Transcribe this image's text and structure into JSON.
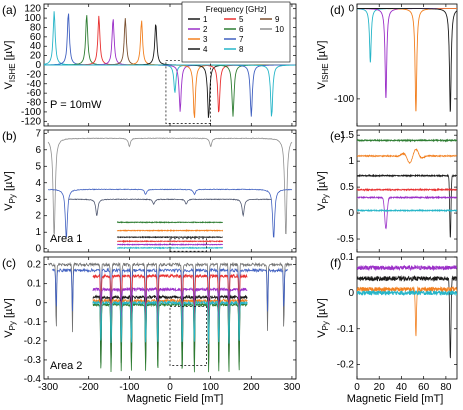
{
  "x_axis_label": "Magnetic Field [mT]",
  "legend": {
    "title": "Frequency [GHz]",
    "entries": [
      {
        "label": "1",
        "color": "#1a1a1a"
      },
      {
        "label": "2",
        "color": "#9b30c8"
      },
      {
        "label": "3",
        "color": "#f28020"
      },
      {
        "label": "4",
        "color": "#1a1a1a"
      },
      {
        "label": "5",
        "color": "#e83030"
      },
      {
        "label": "6",
        "color": "#2e7d32"
      },
      {
        "label": "7",
        "color": "#4060c0"
      },
      {
        "label": "8",
        "color": "#26b5c8"
      },
      {
        "label": "9",
        "color": "#7a5030"
      },
      {
        "label": "10",
        "color": "#909090"
      }
    ]
  },
  "chart_data": [
    {
      "panel": "a",
      "type": "line",
      "ylabel": "V_ISHE [µV]",
      "xlabel": "",
      "xlim": [
        -310,
        310
      ],
      "ylim": [
        -130,
        130
      ],
      "xticks": [
        -300,
        -200,
        -100,
        0,
        100,
        200,
        300
      ],
      "yticks": [
        -120,
        -100,
        -80,
        -60,
        -40,
        -20,
        0,
        20,
        40,
        60,
        80,
        100,
        120
      ],
      "annotation": "P = 10mW",
      "dips": [
        {
          "color": "#26b5c8",
          "center": -285,
          "amp": 115
        },
        {
          "color": "#4060c0",
          "center": -250,
          "amp": 112
        },
        {
          "color": "#2e7d32",
          "center": -205,
          "amp": 108
        },
        {
          "color": "#e83030",
          "center": -175,
          "amp": 105
        },
        {
          "color": "#9b30c8",
          "center": -140,
          "amp": 100
        },
        {
          "color": "#7a5030",
          "center": -110,
          "amp": 100
        },
        {
          "color": "#f28020",
          "center": -70,
          "amp": 95
        },
        {
          "color": "#1a1a1a",
          "center": -35,
          "amp": 90
        },
        {
          "color": "#26b5c8",
          "center": 12,
          "amp": -60
        },
        {
          "color": "#9b30c8",
          "center": 25,
          "amp": -100
        },
        {
          "color": "#f28020",
          "center": 60,
          "amp": -115
        },
        {
          "color": "#1a1a1a",
          "center": 95,
          "amp": -115
        },
        {
          "color": "#e83030",
          "center": 120,
          "amp": -105
        },
        {
          "color": "#2e7d32",
          "center": 155,
          "amp": -110
        },
        {
          "color": "#4060c0",
          "center": 200,
          "amp": -110
        },
        {
          "color": "#26b5c8",
          "center": 250,
          "amp": -112
        }
      ]
    },
    {
      "panel": "b",
      "type": "line",
      "ylabel": "V_Py [µV]",
      "xlabel": "",
      "xlim": [
        -310,
        310
      ],
      "ylim": [
        -0.2,
        7.2
      ],
      "xticks": [
        -300,
        -200,
        -100,
        0,
        100,
        200,
        300
      ],
      "yticks": [
        0,
        1,
        2,
        3,
        4,
        5,
        6,
        7
      ],
      "annotation": "Area 1",
      "series": [
        {
          "color": "#909090",
          "baseline": 6.7,
          "range": [
            -300,
            300
          ],
          "dips": [
            [
              -285,
              6.0
            ],
            [
              -100,
              0.5
            ],
            [
              100,
              0.5
            ],
            [
              285,
              6.0
            ]
          ]
        },
        {
          "color": "#4060c0",
          "baseline": 3.6,
          "range": [
            -300,
            300
          ],
          "dips": [
            [
              -255,
              3.0
            ],
            [
              -60,
              0.3
            ],
            [
              60,
              0.3
            ],
            [
              255,
              3.0
            ]
          ]
        },
        {
          "color": "#505870",
          "baseline": 3.0,
          "range": [
            -250,
            250
          ],
          "dips": [
            [
              -180,
              1.0
            ],
            [
              -40,
              0.3
            ],
            [
              40,
              0.3
            ],
            [
              180,
              1.0
            ]
          ]
        },
        {
          "color": "#2e7d32",
          "baseline": 1.6,
          "range": [
            -130,
            130
          ],
          "dips": []
        },
        {
          "color": "#f28020",
          "baseline": 1.1,
          "range": [
            -130,
            130
          ],
          "dips": []
        },
        {
          "color": "#1a1a1a",
          "baseline": 0.7,
          "range": [
            -130,
            130
          ],
          "dips": []
        },
        {
          "color": "#e83030",
          "baseline": 0.45,
          "range": [
            -130,
            130
          ],
          "dips": []
        },
        {
          "color": "#9b30c8",
          "baseline": 0.25,
          "range": [
            -130,
            130
          ],
          "dips": []
        },
        {
          "color": "#26b5c8",
          "baseline": 0.05,
          "range": [
            -130,
            130
          ],
          "dips": []
        }
      ]
    },
    {
      "panel": "c",
      "type": "line",
      "ylabel": "V_Py [µV]",
      "xlabel": "Magnetic Field [mT]",
      "xlim": [
        -310,
        310
      ],
      "ylim": [
        -0.4,
        0.24
      ],
      "xticks": [
        -300,
        -200,
        -100,
        0,
        100,
        200,
        300
      ],
      "yticks": [
        -0.4,
        -0.3,
        -0.2,
        -0.1,
        0.0,
        0.1,
        0.2
      ],
      "annotation": "Area 2",
      "series": [
        {
          "color": "#707070",
          "baseline": 0.2,
          "range": [
            -300,
            300
          ]
        },
        {
          "color": "#4060c0",
          "baseline": 0.17,
          "range": [
            -290,
            290
          ]
        },
        {
          "color": "#e83030",
          "baseline": 0.14,
          "range": [
            -190,
            190
          ]
        },
        {
          "color": "#9b30c8",
          "baseline": 0.07,
          "range": [
            -190,
            190
          ]
        },
        {
          "color": "#1a1a1a",
          "baseline": 0.03,
          "range": [
            -190,
            190
          ]
        },
        {
          "color": "#f28020",
          "baseline": 0.01,
          "range": [
            -190,
            190
          ]
        },
        {
          "color": "#2e7d32",
          "baseline": -0.01,
          "range": [
            -190,
            190
          ]
        },
        {
          "color": "#26b5c8",
          "baseline": 0.0,
          "range": [
            -190,
            190
          ]
        }
      ]
    },
    {
      "panel": "d",
      "type": "line",
      "ylabel": "V_ISHE [µV]",
      "xlim": [
        0,
        90
      ],
      "ylim": [
        -130,
        5
      ],
      "xticks": [
        0,
        20,
        40,
        60,
        80
      ],
      "yticks": [
        -100,
        0
      ],
      "dips": [
        {
          "color": "#26b5c8",
          "center": 12,
          "amp": -60
        },
        {
          "color": "#9b30c8",
          "center": 26,
          "amp": -100
        },
        {
          "color": "#f28020",
          "center": 53,
          "amp": -115
        },
        {
          "color": "#1a1a1a",
          "center": 84,
          "amp": -115
        }
      ]
    },
    {
      "panel": "e",
      "type": "line",
      "ylabel": "V_Py [µV]",
      "xlim": [
        0,
        90
      ],
      "ylim": [
        -0.75,
        1.6
      ],
      "xticks": [
        0,
        20,
        40,
        60,
        80
      ],
      "yticks": [
        -0.5,
        0.0,
        0.5,
        1.0,
        1.5
      ],
      "series": [
        {
          "color": "#2e7d32",
          "baseline": 1.4
        },
        {
          "color": "#f28020",
          "baseline": 1.1
        },
        {
          "color": "#1a1a1a",
          "baseline": 0.72
        },
        {
          "color": "#e83030",
          "baseline": 0.45
        },
        {
          "color": "#9b30c8",
          "baseline": 0.3
        },
        {
          "color": "#26b5c8",
          "baseline": 0.05
        }
      ]
    },
    {
      "panel": "f",
      "type": "line",
      "ylabel": "V_Py [µV]",
      "xlabel": "Magnetic Field [mT]",
      "xlim": [
        0,
        90
      ],
      "ylim": [
        -0.24,
        0.1
      ],
      "xticks": [
        0,
        20,
        40,
        60,
        80
      ],
      "yticks": [
        -0.2,
        -0.1,
        0.0,
        0.1
      ],
      "series": [
        {
          "color": "#9b30c8",
          "baseline": 0.07
        },
        {
          "color": "#1a1a1a",
          "baseline": 0.04
        },
        {
          "color": "#f28020",
          "baseline": 0.01
        },
        {
          "color": "#26b5c8",
          "baseline": 0.0
        }
      ]
    }
  ]
}
